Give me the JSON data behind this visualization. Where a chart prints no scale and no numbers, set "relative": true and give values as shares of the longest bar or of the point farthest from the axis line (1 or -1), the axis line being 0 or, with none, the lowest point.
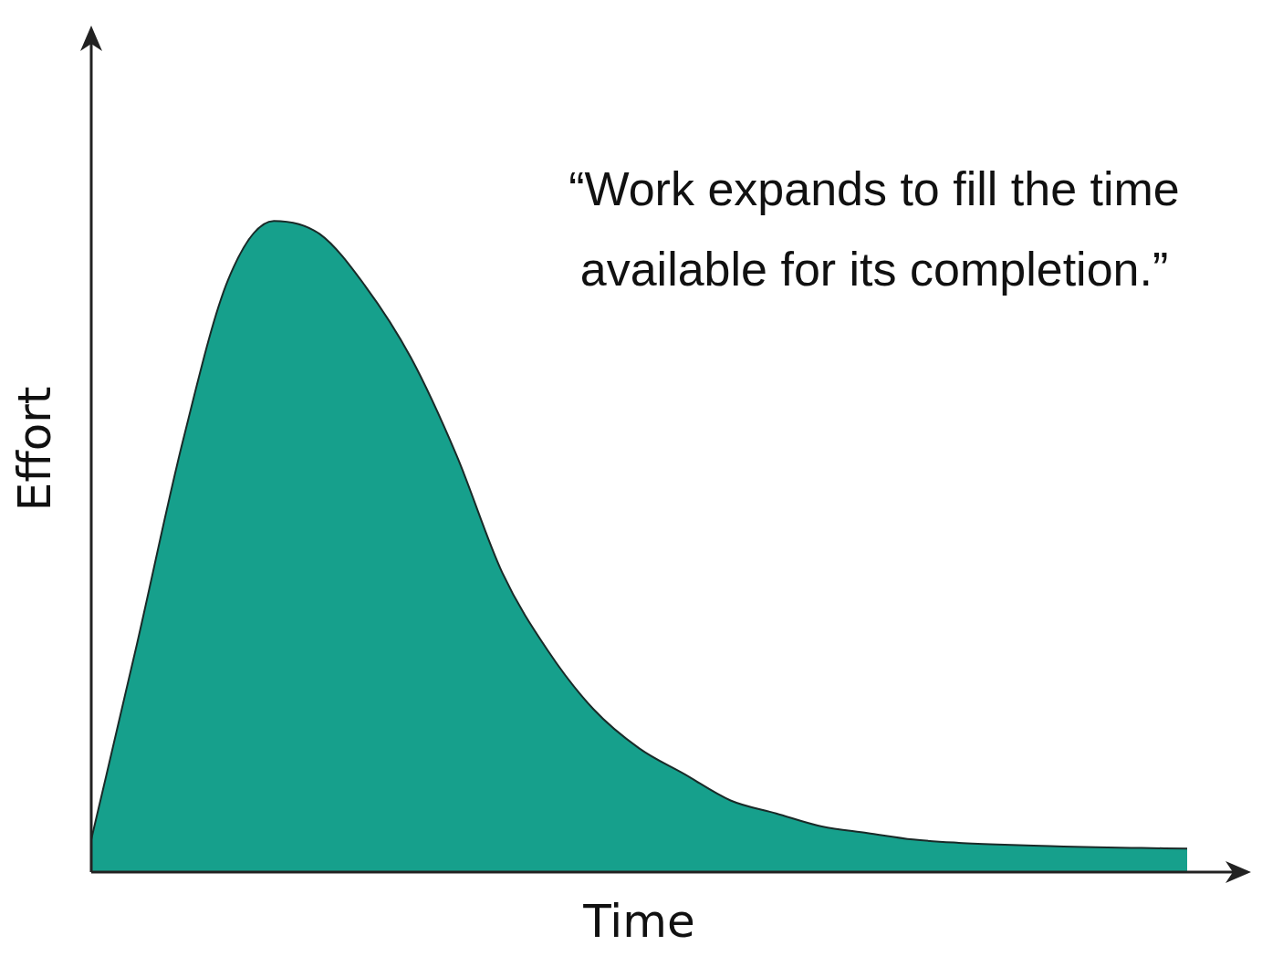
{
  "chart_data": {
    "type": "area",
    "xlabel": "Time",
    "ylabel": "Effort",
    "annotations": [
      "“Work expands to fill the time available for its completion.”"
    ],
    "relative": true,
    "color": "#16a08c",
    "categories": [
      null,
      null,
      null,
      null,
      null,
      null,
      null,
      null,
      null,
      null,
      null,
      null,
      null,
      null,
      null,
      null,
      null,
      null,
      null,
      null,
      null,
      null,
      null,
      null,
      null
    ],
    "values": [
      0.05,
      0.35,
      0.66,
      0.91,
      1.0,
      0.98,
      0.9,
      0.79,
      0.64,
      0.46,
      0.34,
      0.25,
      0.19,
      0.15,
      0.11,
      0.09,
      0.07,
      0.06,
      0.05,
      0.045,
      0.042,
      0.04,
      0.038,
      0.037,
      0.036
    ]
  }
}
